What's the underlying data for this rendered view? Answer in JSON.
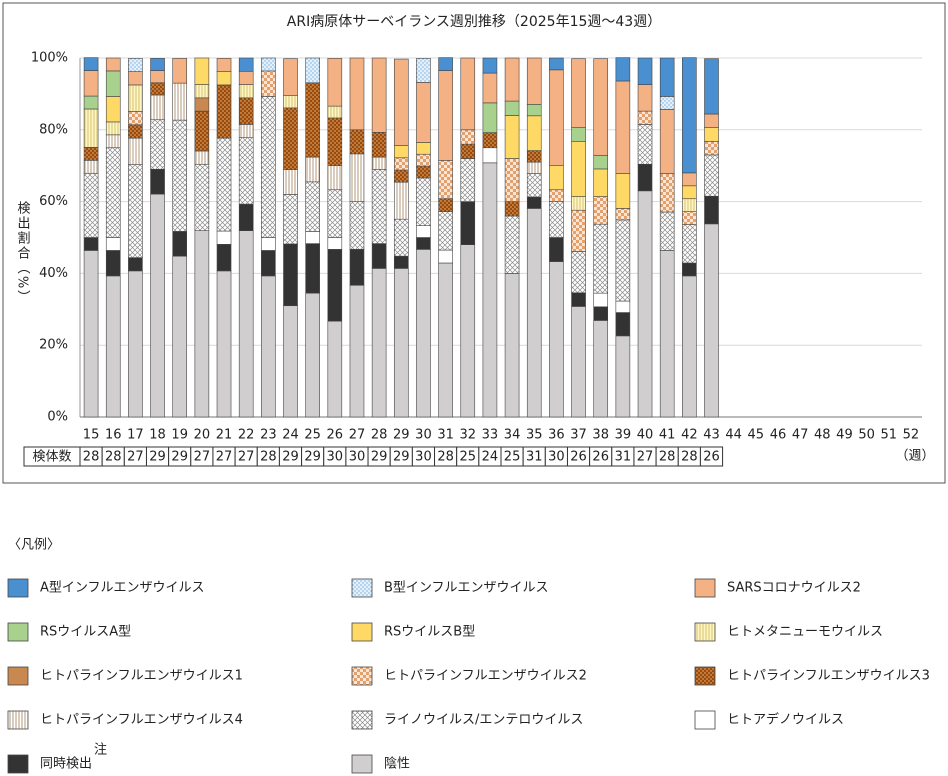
{
  "chart_data": {
    "type": "stacked_bar",
    "title": "ARI病原体サーベイランス週別推移（2025年15週～43週）",
    "ylabel": "検出割合（%）",
    "xlabel": "（週）",
    "categories": [
      "15",
      "16",
      "17",
      "18",
      "19",
      "20",
      "21",
      "22",
      "23",
      "24",
      "25",
      "26",
      "27",
      "28",
      "29",
      "30",
      "31",
      "32",
      "33",
      "34",
      "35",
      "36",
      "37",
      "38",
      "39",
      "40",
      "41",
      "42",
      "43",
      "44",
      "45",
      "46",
      "47",
      "48",
      "49",
      "50",
      "51",
      "52"
    ],
    "ylim": [
      0,
      100
    ],
    "yticks": [
      {
        "value": 0,
        "label": "0%"
      },
      {
        "value": 20,
        "label": "20%"
      },
      {
        "value": 40,
        "label": "40%"
      },
      {
        "value": 60,
        "label": "60%"
      },
      {
        "value": 80,
        "label": "80%"
      },
      {
        "value": 100,
        "label": "100%"
      }
    ],
    "grid": true,
    "sample_label": "検体数",
    "sample_sizes": [
      28,
      28,
      27,
      29,
      29,
      27,
      27,
      27,
      28,
      29,
      29,
      30,
      30,
      29,
      29,
      30,
      28,
      25,
      24,
      25,
      31,
      30,
      26,
      26,
      31,
      27,
      28,
      28,
      26,
      null,
      null,
      null,
      null,
      null,
      null,
      null,
      null,
      null
    ],
    "legend_title": "〈凡例〉",
    "series": [
      {
        "name": "A型インフルエンザウイルス",
        "color": "#4a8fd0",
        "values": [
          3.6,
          0,
          0,
          3.4,
          0,
          0,
          0,
          3.7,
          0,
          0,
          0,
          0,
          0,
          0,
          0,
          0,
          3.6,
          0,
          4.2,
          0,
          0,
          3.3,
          0,
          0,
          6.5,
          7.4,
          10.7,
          32.1,
          15.4,
          null,
          null,
          null,
          null,
          null,
          null,
          null,
          null,
          null
        ]
      },
      {
        "name": "B型インフルエンザウイルス",
        "color": "#ddeefa",
        "pattern": "dots",
        "values": [
          0,
          0,
          3.7,
          0,
          0,
          0,
          0,
          0,
          3.6,
          0,
          6.9,
          0,
          0,
          0,
          0,
          6.7,
          0,
          0,
          0,
          0,
          0,
          0,
          0,
          0,
          0,
          0,
          3.6,
          0,
          0,
          null,
          null,
          null,
          null,
          null,
          null,
          null,
          null,
          null
        ]
      },
      {
        "name": "SARSコロナウイルス2",
        "color": "#f4b183",
        "values": [
          7.1,
          3.6,
          3.7,
          3.4,
          6.9,
          0,
          3.7,
          3.7,
          0,
          10.3,
          0,
          13.3,
          20,
          20.7,
          24.1,
          16.7,
          25,
          20,
          8.3,
          12,
          12.9,
          26.7,
          19.2,
          26.9,
          25.8,
          7.4,
          17.9,
          3.6,
          3.8,
          null,
          null,
          null,
          null,
          null,
          null,
          null,
          null,
          null
        ]
      },
      {
        "name": "RSウイルスA型",
        "color": "#a9d18e",
        "values": [
          3.6,
          7.1,
          0,
          0,
          0,
          0,
          0,
          0,
          0,
          0,
          0,
          0,
          0,
          0,
          0,
          0,
          0,
          0,
          8.3,
          4,
          3.2,
          0,
          3.8,
          3.8,
          0,
          0,
          0,
          0,
          0,
          null,
          null,
          null,
          null,
          null,
          null,
          null,
          null,
          null
        ]
      },
      {
        "name": "RSウイルスB型",
        "color": "#ffd966",
        "values": [
          0,
          7.1,
          0,
          0,
          0,
          7.4,
          3.7,
          0,
          0,
          0,
          0,
          0,
          0,
          0,
          3.4,
          3.3,
          0,
          0,
          0,
          12,
          9.7,
          6.7,
          15.4,
          7.7,
          9.7,
          0,
          0,
          3.6,
          3.8,
          null,
          null,
          null,
          null,
          null,
          null,
          null,
          null,
          null
        ]
      },
      {
        "name": "ヒトメタニューモウイルス",
        "color": "#fff2b0",
        "pattern": "vlines-yellow",
        "values": [
          10.7,
          3.6,
          7.4,
          0,
          0,
          3.7,
          0,
          3.7,
          0,
          3.4,
          0,
          3.3,
          0,
          0,
          0,
          0,
          0,
          0,
          0,
          0,
          0,
          0,
          3.8,
          0,
          0,
          0,
          0,
          3.6,
          0,
          null,
          null,
          null,
          null,
          null,
          null,
          null,
          null,
          null
        ]
      },
      {
        "name": "ヒトパラインフルエンザウイルス1",
        "color": "#c9884f",
        "values": [
          0,
          0,
          0,
          0,
          0,
          3.7,
          0,
          0,
          0,
          0,
          0,
          0,
          0,
          0,
          0,
          0,
          0,
          0,
          0,
          0,
          0,
          0,
          0,
          0,
          0,
          0,
          0,
          0,
          0,
          null,
          null,
          null,
          null,
          null,
          null,
          null,
          null,
          null
        ]
      },
      {
        "name": "ヒトパラインフルエンザウイルス2",
        "color": "#f8cbad",
        "pattern": "checker",
        "values": [
          0,
          0,
          3.7,
          0,
          0,
          0,
          0,
          0,
          7.1,
          0,
          0,
          0,
          0,
          0,
          3.4,
          3.3,
          10.7,
          4,
          0,
          12,
          0,
          3.3,
          11.5,
          7.7,
          3.2,
          3.7,
          10.7,
          3.6,
          3.8,
          null,
          null,
          null,
          null,
          null,
          null,
          null,
          null,
          null
        ]
      },
      {
        "name": "ヒトパラインフルエンザウイルス3",
        "color": "#9c4a0a",
        "pattern": "browndots",
        "values": [
          3.6,
          0,
          3.7,
          3.4,
          0,
          11.1,
          14.8,
          7.4,
          0,
          17.2,
          20.7,
          13.3,
          6.7,
          6.9,
          3.4,
          3.3,
          3.6,
          4,
          4.2,
          4,
          3.2,
          0,
          0,
          0,
          0,
          0,
          0,
          0,
          0,
          null,
          null,
          null,
          null,
          null,
          null,
          null,
          null,
          null
        ]
      },
      {
        "name": "ヒトパラインフルエンザウイルス4",
        "color": "#ffffff",
        "pattern": "vlines-brown",
        "values": [
          3.6,
          3.6,
          7.4,
          6.9,
          10.3,
          3.7,
          0,
          3.7,
          0,
          6.9,
          6.9,
          6.7,
          13.3,
          3.4,
          10.3,
          0,
          0,
          0,
          0,
          0,
          3.2,
          0,
          0,
          0,
          0,
          0,
          0,
          0,
          0,
          null,
          null,
          null,
          null,
          null,
          null,
          null,
          null,
          null
        ]
      },
      {
        "name": "ライノウイルス/エンテロウイルス",
        "color": "#ffffff",
        "pattern": "crosshatch",
        "values": [
          17.9,
          25,
          25.9,
          13.8,
          31,
          18.5,
          25.9,
          18.5,
          39.3,
          13.8,
          13.8,
          13.3,
          13.3,
          20.7,
          10.3,
          13.3,
          10.7,
          12,
          0,
          16,
          6.5,
          10,
          11.5,
          19.2,
          22.6,
          11.1,
          10.7,
          10.7,
          11.5,
          null,
          null,
          null,
          null,
          null,
          null,
          null,
          null,
          null
        ]
      },
      {
        "name": "ヒトアデノウイルス",
        "color": "#ffffff",
        "values": [
          0,
          3.6,
          0,
          0,
          0,
          0,
          3.7,
          0,
          3.6,
          0,
          3.4,
          3.3,
          0,
          0,
          0,
          3.3,
          3.6,
          0,
          4.2,
          0,
          0,
          0,
          0,
          3.8,
          3.2,
          0,
          0,
          0,
          0,
          null,
          null,
          null,
          null,
          null,
          null,
          null,
          null,
          null
        ]
      },
      {
        "name": "同時検出",
        "note": "注",
        "color": "#333333",
        "values": [
          3.6,
          7.1,
          3.7,
          6.9,
          6.9,
          0,
          7.4,
          7.4,
          7.1,
          17.2,
          13.8,
          20,
          10,
          6.9,
          3.4,
          3.3,
          0,
          12,
          0,
          0,
          3.2,
          6.7,
          3.8,
          3.8,
          6.5,
          7.4,
          0,
          3.6,
          7.7,
          null,
          null,
          null,
          null,
          null,
          null,
          null,
          null,
          null
        ]
      },
      {
        "name": "陰性",
        "color": "#d0cece",
        "values": [
          46.4,
          39.3,
          40.7,
          62.1,
          44.8,
          51.9,
          40.7,
          51.9,
          39.3,
          31,
          34.5,
          26.7,
          36.7,
          41.4,
          41.4,
          46.7,
          42.9,
          48,
          70.8,
          40,
          58.1,
          43.3,
          30.8,
          26.9,
          22.6,
          63,
          46.4,
          39.3,
          53.8,
          null,
          null,
          null,
          null,
          null,
          null,
          null,
          null,
          null
        ]
      }
    ]
  }
}
